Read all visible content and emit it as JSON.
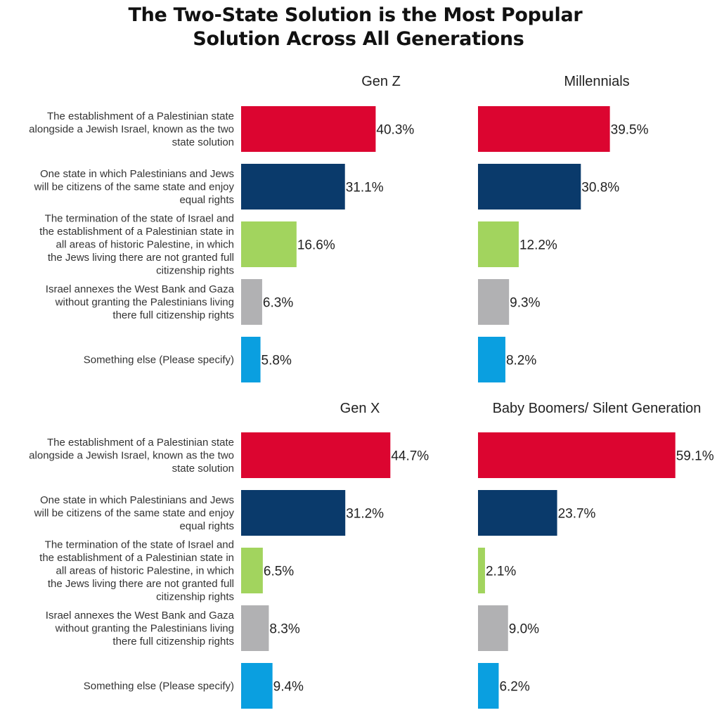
{
  "title_lines": [
    "The Two-State Solution is the Most Popular",
    "Solution Across All Generations"
  ],
  "chart_data": {
    "type": "bar",
    "orientation": "horizontal",
    "grid": false,
    "value_suffix": "%",
    "categories": [
      "The establishment of a Palestinian state alongside a Jewish Israel, known as the two state solution",
      "One state in which Palestinians and Jews will be citizens of the same state and enjoy equal rights",
      "The termination of the state of Israel and the establishment of a Palestinian state in all areas of historic Palestine, in which the Jews living there are not granted full citizenship rights",
      "Israel annexes the West Bank and Gaza without granting the Palestinians living there full citizenship rights",
      "Something else (Please specify)"
    ],
    "category_lines": [
      [
        "The establishment of a Palestinian state",
        "alongside a Jewish Israel, known as the two",
        "state solution"
      ],
      [
        "One state in which Palestinians and Jews",
        "will be citizens of the same state and enjoy",
        "equal rights"
      ],
      [
        "The termination of the state of Israel and",
        "the establishment of a Palestinian state in",
        "all areas of historic Palestine, in which",
        "the Jews living there are not granted full",
        "citizenship rights"
      ],
      [
        "Israel annexes the West Bank and Gaza",
        "without granting the Palestinians living",
        "there full citizenship rights"
      ],
      [
        "Something else (Please specify)"
      ]
    ],
    "bar_colors": [
      "#dc0530",
      "#0a3a6b",
      "#a2d45e",
      "#b1b1b3",
      "#0a9fe0"
    ],
    "xlim": [
      0,
      60
    ],
    "panels": [
      {
        "title": "Gen Z",
        "values": [
          40.3,
          31.1,
          16.6,
          6.3,
          5.8
        ],
        "labels": [
          "40.3%",
          "31.1%",
          "16.6%",
          "6.3%",
          "5.8%"
        ]
      },
      {
        "title": "Millennials",
        "values": [
          39.5,
          30.8,
          12.2,
          9.3,
          8.2
        ],
        "labels": [
          "39.5%",
          "30.8%",
          "12.2%",
          "9.3%",
          "8.2%"
        ]
      },
      {
        "title": "Gen X",
        "values": [
          44.7,
          31.2,
          6.5,
          8.3,
          9.4
        ],
        "labels": [
          "44.7%",
          "31.2%",
          "6.5%",
          "8.3%",
          "9.4%"
        ]
      },
      {
        "title": "Baby Boomers/ Silent Generation",
        "values": [
          59.1,
          23.7,
          2.1,
          9.0,
          6.2
        ],
        "labels": [
          "59.1%",
          "23.7%",
          "2.1%",
          "9.0%",
          "6.2%"
        ]
      }
    ]
  }
}
